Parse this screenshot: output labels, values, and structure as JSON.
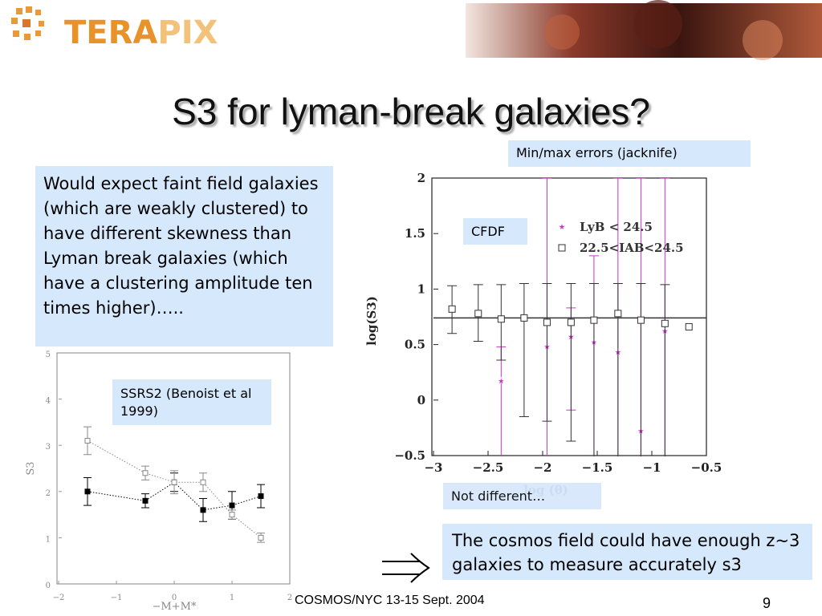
{
  "header": {
    "logo_a": "TERA",
    "logo_b": "PIX"
  },
  "title": "S3 for lyman-break galaxies?",
  "left_text": "Would expect faint field galaxies (which are weakly clustered) to have different skewness than Lyman break galaxies (which have a clustering amplitude ten times higher)…..",
  "errors_note": "Min/max errors (jacknife)",
  "cfdf_label": "CFDF",
  "ssrs_label": "SSRS2 (Benoist et al 1999)",
  "not_different": "Not different…",
  "conclusion": "The cosmos field could have enough z~3 galaxies to measure accurately s3",
  "footer": "COSMOS/NYC 13-15 Sept. 2004",
  "page_number": "9",
  "chart_data": [
    {
      "type": "scatter",
      "x_label": "log (θ)",
      "y_label": "log(S3)",
      "xlim": [
        -3,
        -0.5
      ],
      "ylim": [
        -0.5,
        2
      ],
      "xticks": [
        {
          "value": -3,
          "label": "−3"
        },
        {
          "value": -2.5,
          "label": "−2.5"
        },
        {
          "value": -2,
          "label": "−2"
        },
        {
          "value": -1.5,
          "label": "−1.5"
        },
        {
          "value": -1,
          "label": "−1"
        },
        {
          "value": -0.5,
          "label": "−0.5"
        }
      ],
      "yticks": [
        {
          "value": -0.5,
          "label": "−0.5"
        },
        0,
        0.5,
        1,
        1.5,
        2
      ],
      "hline": 0.74,
      "series": [
        {
          "name": "LyB < 24.5",
          "color": "#cc33cc",
          "marker": "star",
          "x": [
            -2.38,
            -1.96,
            -1.74,
            -1.53,
            -1.31,
            -1.1,
            -0.88
          ],
          "values": [
            0.17,
            0.48,
            0.57,
            0.52,
            0.43,
            -0.28,
            0.62
          ],
          "err_low": [
            0.8,
            1.0,
            0.66,
            1.1,
            1.0,
            0.3,
            1.2
          ],
          "err_high": [
            0.31,
            1.52,
            0.26,
            0.78,
            1.57,
            2.28,
            1.38
          ]
        },
        {
          "name": "22.5<IAB<24.5",
          "color": "#333333",
          "marker": "open-square",
          "x": [
            -2.83,
            -2.59,
            -2.38,
            -2.17,
            -1.96,
            -1.74,
            -1.53,
            -1.31,
            -1.1,
            -0.88,
            -0.66
          ],
          "values": [
            0.82,
            0.78,
            0.73,
            0.74,
            0.7,
            0.7,
            0.72,
            0.78,
            0.72,
            0.69,
            0.66
          ],
          "err_low": [
            0.22,
            0.25,
            0.37,
            0.89,
            0.89,
            1.07,
            1.4,
            1.5,
            1.5,
            1.5,
            null
          ],
          "err_high": [
            0.21,
            0.26,
            0.31,
            0.31,
            0.35,
            0.35,
            0.33,
            0.27,
            0.33,
            0.35,
            null
          ]
        }
      ]
    },
    {
      "type": "scatter",
      "x_label": "−M+M*",
      "y_label": "S3",
      "xlim": [
        -2,
        2
      ],
      "ylim": [
        0,
        5
      ],
      "xticks": [
        {
          "value": -2,
          "label": "−2"
        },
        {
          "value": -1,
          "label": "−1"
        },
        0,
        1,
        2
      ],
      "yticks": [
        0,
        1,
        2,
        3,
        4,
        5
      ],
      "series": [
        {
          "color": "#000000",
          "marker": "filled-square",
          "line": "dotted",
          "x": [
            -1.5,
            -0.5,
            0,
            0.5,
            1,
            1.5
          ],
          "values": [
            2.0,
            1.8,
            2.2,
            1.6,
            1.7,
            1.9
          ],
          "err_low": [
            0.3,
            0.15,
            0.2,
            0.25,
            0.3,
            0.25
          ],
          "err_high": [
            0.3,
            0.15,
            0.2,
            0.25,
            0.3,
            0.25
          ]
        },
        {
          "color": "#888888",
          "marker": "open-square",
          "line": "dotted",
          "x": [
            -1.5,
            -0.5,
            0,
            0.5,
            1,
            1.5
          ],
          "values": [
            3.1,
            2.4,
            2.2,
            2.2,
            1.5,
            1.0
          ],
          "err_low": [
            0.3,
            0.15,
            0.25,
            0.2,
            0.1,
            0.1
          ],
          "err_high": [
            0.3,
            0.15,
            0.25,
            0.2,
            0.1,
            0.1
          ]
        }
      ]
    }
  ]
}
